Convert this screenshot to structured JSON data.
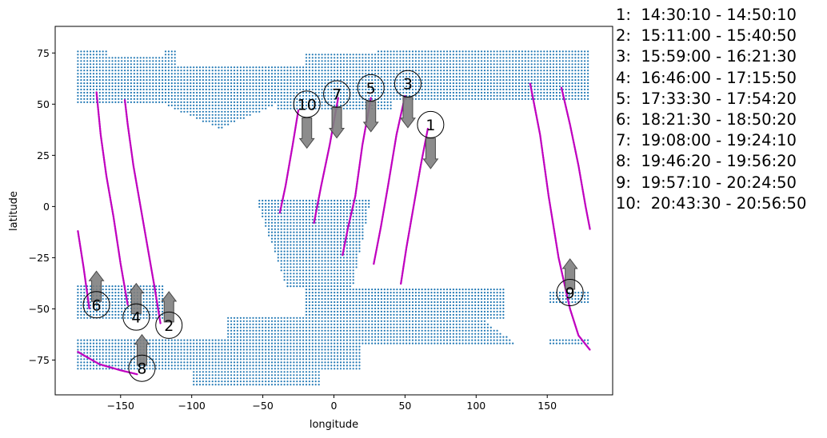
{
  "chart_data": {
    "type": "scatter",
    "xlabel": "longitude",
    "ylabel": "latitude",
    "xlim": [
      -196,
      196
    ],
    "ylim": [
      -92,
      88
    ],
    "xticks": [
      -150,
      -100,
      -50,
      0,
      50,
      100,
      150
    ],
    "yticks": [
      -75,
      -50,
      -25,
      0,
      25,
      50,
      75
    ],
    "grid": false,
    "colors": {
      "land_points": "#1f77b4",
      "track": "#bf00bf",
      "arrow": "#7f7f7f"
    },
    "tracks": [
      {
        "id": 1,
        "direction": "south",
        "points": [
          [
            66,
            38
          ],
          [
            61,
            20
          ],
          [
            56,
            0
          ],
          [
            51,
            -20
          ],
          [
            47,
            -38
          ]
        ]
      },
      {
        "id": 2,
        "direction": "north",
        "points": [
          [
            -122,
            -57
          ],
          [
            -126,
            -40
          ],
          [
            -131,
            -20
          ],
          [
            -136,
            0
          ],
          [
            -141,
            20
          ],
          [
            -145,
            40
          ],
          [
            -147,
            52
          ]
        ]
      },
      {
        "id": 3,
        "direction": "south",
        "points": [
          [
            50,
            54
          ],
          [
            44,
            35
          ],
          [
            38,
            10
          ],
          [
            33,
            -10
          ],
          [
            28,
            -28
          ]
        ]
      },
      {
        "id": 4,
        "direction": "north",
        "points": [
          [
            -145,
            -48
          ],
          [
            -150,
            -28
          ],
          [
            -155,
            -5
          ],
          [
            -160,
            15
          ],
          [
            -164,
            35
          ],
          [
            -167,
            56
          ]
        ]
      },
      {
        "id": 5,
        "direction": "south",
        "points": [
          [
            26,
            53
          ],
          [
            20,
            30
          ],
          [
            15,
            5
          ],
          [
            10,
            -10
          ],
          [
            6,
            -24
          ]
        ]
      },
      {
        "id": 6,
        "direction": "north",
        "points": [
          [
            -180,
            -12
          ],
          [
            -176,
            -30
          ],
          [
            -172,
            -50
          ]
        ]
      },
      {
        "id": 7,
        "direction": "south",
        "points": [
          [
            3,
            53
          ],
          [
            -3,
            30
          ],
          [
            -9,
            10
          ],
          [
            -14,
            -8
          ]
        ]
      },
      {
        "id": 8,
        "direction": "north",
        "points": [
          [
            -180,
            -71
          ],
          [
            -165,
            -77
          ],
          [
            -150,
            -80
          ],
          [
            -138,
            -82
          ]
        ]
      },
      {
        "id": 9,
        "direction": "north",
        "points": [
          [
            138,
            60
          ],
          [
            145,
            35
          ],
          [
            151,
            5
          ],
          [
            158,
            -25
          ],
          [
            166,
            -50
          ],
          [
            172,
            -63
          ],
          [
            180,
            -70
          ]
        ]
      },
      {
        "id": 10,
        "direction": "south",
        "points": [
          [
            -25,
            47
          ],
          [
            -29,
            30
          ],
          [
            -34,
            10
          ],
          [
            -38,
            -3
          ]
        ]
      },
      {
        "id": 11,
        "direction": "none",
        "points": [
          [
            160,
            58
          ],
          [
            166,
            40
          ],
          [
            172,
            20
          ],
          [
            177,
            0
          ],
          [
            180,
            -11
          ]
        ]
      }
    ],
    "markers": [
      {
        "label": "1",
        "x": 68,
        "y": 40,
        "arrow": "down"
      },
      {
        "label": "2",
        "x": -116,
        "y": -58,
        "arrow": "up"
      },
      {
        "label": "3",
        "x": 52,
        "y": 60,
        "arrow": "down"
      },
      {
        "label": "4",
        "x": -139,
        "y": -54,
        "arrow": "up"
      },
      {
        "label": "5",
        "x": 26,
        "y": 58,
        "arrow": "down"
      },
      {
        "label": "6",
        "x": -167,
        "y": -48,
        "arrow": "up"
      },
      {
        "label": "7",
        "x": 2,
        "y": 55,
        "arrow": "down"
      },
      {
        "label": "8",
        "x": -135,
        "y": -79,
        "arrow": "up"
      },
      {
        "label": "9",
        "x": 166,
        "y": -42,
        "arrow": "up"
      },
      {
        "label": "10",
        "x": -19,
        "y": 50,
        "arrow": "down"
      }
    ],
    "legend": [
      "1:  14:30:10 - 14:50:10",
      "2:  15:11:00 - 15:40:50",
      "3:  15:59:00 - 16:21:30",
      "4:  16:46:00 - 17:15:50",
      "5:  17:33:30 - 17:54:20",
      "6:  18:21:30 - 18:50:20",
      "7:  19:08:00 - 19:24:10",
      "8:  19:46:20 - 19:56:20",
      "9:  19:57:10 - 20:24:50",
      "10:  20:43:30 - 20:56:50"
    ]
  }
}
